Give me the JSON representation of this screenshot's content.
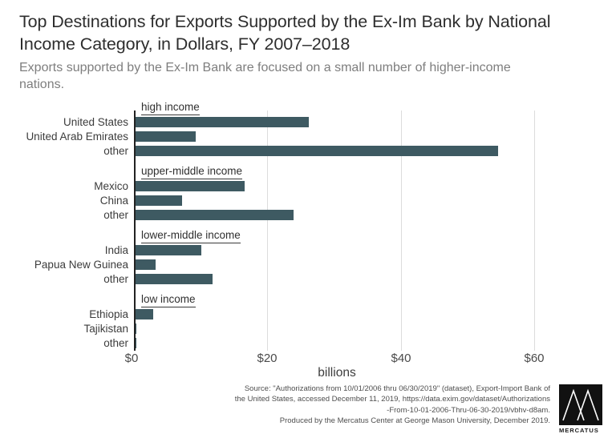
{
  "title": "Top Destinations for Exports Supported by the Ex-Im Bank by National Income Category, in Dollars, FY 2007–2018",
  "subtitle": "Exports supported by the Ex-Im Bank are focused on a small number of higher-income nations.",
  "x_axis": {
    "ticks": [
      "$0",
      "$20",
      "$40",
      "$60"
    ],
    "label": "billions"
  },
  "chart_data": {
    "type": "bar",
    "orientation": "horizontal",
    "title": "Top Destinations for Exports Supported by the Ex-Im Bank by National Income Category, in Dollars, FY 2007–2018",
    "xlabel": "billions",
    "unit": "billions of dollars",
    "xlim": [
      0,
      64
    ],
    "gridlines": [
      0,
      20,
      40,
      60
    ],
    "grid": true,
    "bar_color": "#3e5a62",
    "groups": [
      {
        "label": "high income",
        "items": [
          {
            "name": "United States",
            "value": 26
          },
          {
            "name": "United Arab Emirates",
            "value": 9
          },
          {
            "name": "other",
            "value": 54.3
          }
        ]
      },
      {
        "label": "upper-middle income",
        "items": [
          {
            "name": "Mexico",
            "value": 16.3
          },
          {
            "name": "China",
            "value": 7
          },
          {
            "name": "other",
            "value": 23.7
          }
        ]
      },
      {
        "label": "lower-middle income",
        "items": [
          {
            "name": "India",
            "value": 9.9
          },
          {
            "name": "Papua New Guinea",
            "value": 3
          },
          {
            "name": "other",
            "value": 11.5
          }
        ]
      },
      {
        "label": "low income",
        "items": [
          {
            "name": "Ethiopia",
            "value": 2.6
          },
          {
            "name": "Tajikistan",
            "value": 0.15
          },
          {
            "name": "other",
            "value": 0.1
          }
        ]
      }
    ]
  },
  "footer": {
    "lines": [
      "Source: \"Authorizations from 10/01/2006 thru 06/30/2019\" (dataset), Export-Import Bank of",
      "the United States, accessed December 11, 2019, https://data.exim.gov/dataset/Authorizations",
      "-From-10-01-2006-Thru-06-30-2019/vbhv-d8am.",
      "Produced by the Mercatus Center at George Mason University, December 2019."
    ],
    "logo_text": "MERCATUS"
  },
  "colors": {
    "bar": "#3e5a62",
    "gridline": "#dcdcdc",
    "axis": "#222222",
    "title": "#2e2e2e",
    "subtitle": "#7e7e7e",
    "logo_background": "#111111"
  }
}
